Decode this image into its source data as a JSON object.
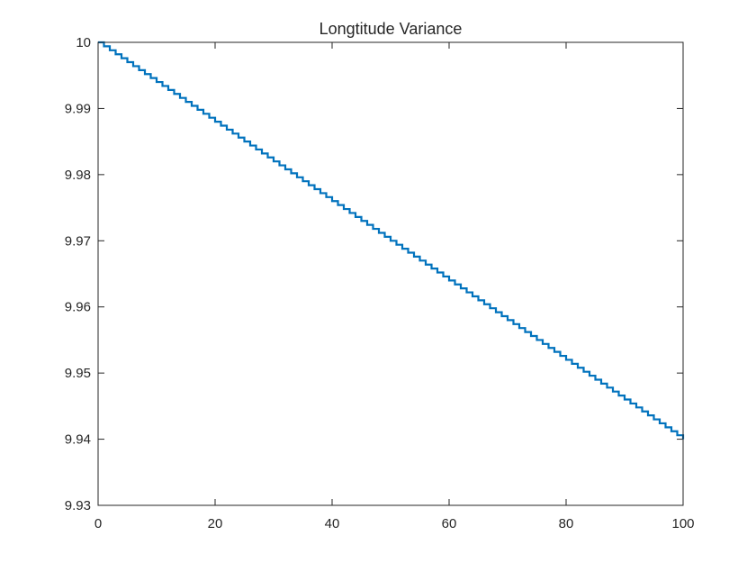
{
  "chart_data": {
    "type": "line",
    "title": "Longtitude Variance",
    "xlabel": "",
    "ylabel": "",
    "xlim": [
      0,
      100
    ],
    "ylim": [
      9.93,
      10
    ],
    "x_ticks": [
      0,
      20,
      40,
      60,
      80,
      100
    ],
    "y_ticks": [
      9.93,
      9.94,
      9.95,
      9.96,
      9.97,
      9.98,
      9.99,
      10
    ],
    "x_tick_labels": [
      "0",
      "20",
      "40",
      "60",
      "80",
      "100"
    ],
    "y_tick_labels": [
      "9.93",
      "9.94",
      "9.95",
      "9.96",
      "9.97",
      "9.98",
      "9.99",
      "10"
    ],
    "grid": false,
    "legend": "none",
    "series": [
      {
        "style": "stairs",
        "x": [
          0,
          10,
          20,
          30,
          40,
          50,
          60,
          70,
          80,
          90,
          100
        ],
        "y": [
          10,
          9.994,
          9.988,
          9.982,
          9.976,
          9.97,
          9.964,
          9.958,
          9.952,
          9.946,
          9.94
        ],
        "step": 1,
        "color": "#0072BD"
      }
    ],
    "colors": {
      "line": "#0072BD",
      "axes": "#262626",
      "background": "#ffffff"
    }
  }
}
